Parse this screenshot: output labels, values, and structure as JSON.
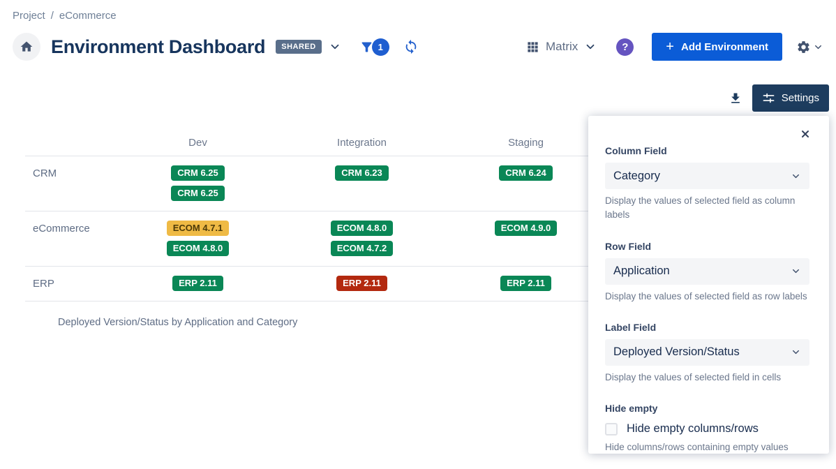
{
  "breadcrumb": {
    "items": [
      "Project",
      "eCommerce"
    ],
    "separator": "/"
  },
  "header": {
    "title": "Environment Dashboard",
    "shared_badge": "SHARED",
    "filter_count": "1",
    "view_selector": {
      "label": "Matrix"
    },
    "help_glyph": "?",
    "add_button": {
      "plus": "+",
      "label": "Add Environment"
    }
  },
  "toolbar": {
    "settings_label": "Settings"
  },
  "matrix": {
    "columns": [
      "Dev",
      "Integration",
      "Staging"
    ],
    "rows": [
      {
        "label": "CRM",
        "cells": [
          [
            {
              "text": "CRM 6.25",
              "status": "green"
            },
            {
              "text": "CRM 6.25",
              "status": "green"
            }
          ],
          [
            {
              "text": "CRM 6.23",
              "status": "green"
            }
          ],
          [
            {
              "text": "CRM 6.24",
              "status": "green"
            }
          ]
        ]
      },
      {
        "label": "eCommerce",
        "cells": [
          [
            {
              "text": "ECOM 4.7.1",
              "status": "amber"
            },
            {
              "text": "ECOM 4.8.0",
              "status": "green"
            }
          ],
          [
            {
              "text": "ECOM 4.8.0",
              "status": "green"
            },
            {
              "text": "ECOM 4.7.2",
              "status": "green"
            }
          ],
          [
            {
              "text": "ECOM 4.9.0",
              "status": "green"
            }
          ]
        ]
      },
      {
        "label": "ERP",
        "cells": [
          [
            {
              "text": "ERP 2.11",
              "status": "green"
            }
          ],
          [
            {
              "text": "ERP 2.11",
              "status": "red"
            }
          ],
          [
            {
              "text": "ERP 2.11",
              "status": "green"
            }
          ]
        ]
      }
    ],
    "caption": "Deployed Version/Status by Application and Category"
  },
  "settings_panel": {
    "fields": [
      {
        "label": "Column Field",
        "value": "Category",
        "help": "Display the values of selected field as column labels"
      },
      {
        "label": "Row Field",
        "value": "Application",
        "help": "Display the values of selected field as row labels"
      },
      {
        "label": "Label Field",
        "value": "Deployed Version/Status",
        "help": "Display the values of selected field in cells"
      }
    ],
    "hide_empty": {
      "label": "Hide empty",
      "checkbox_label": "Hide empty columns/rows",
      "help": "Hide columns/rows containing empty values",
      "checked": false
    }
  },
  "colors": {
    "accent_blue": "#0b5cd7",
    "navy": "#1d3c5e",
    "purple_help": "#6554c0",
    "badge_green": "#0a8756",
    "badge_amber": "#efba45",
    "badge_red": "#b3290f",
    "shared_badge_bg": "#596e8a"
  }
}
